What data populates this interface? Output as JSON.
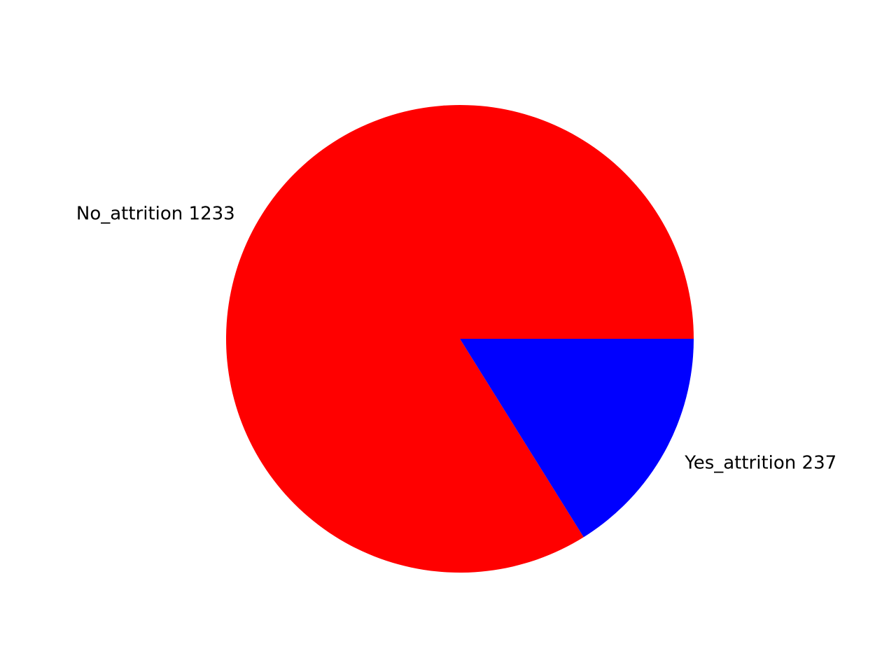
{
  "chart_data": {
    "type": "pie",
    "title": "",
    "slices": [
      {
        "label": "No_attrition  1233",
        "value": 1233,
        "color": "#ff0000"
      },
      {
        "label": "Yes_attrition  237",
        "value": 237,
        "color": "#0000ff"
      }
    ],
    "start_angle_deg": 0,
    "direction": "counterclockwise",
    "legend": "none"
  }
}
